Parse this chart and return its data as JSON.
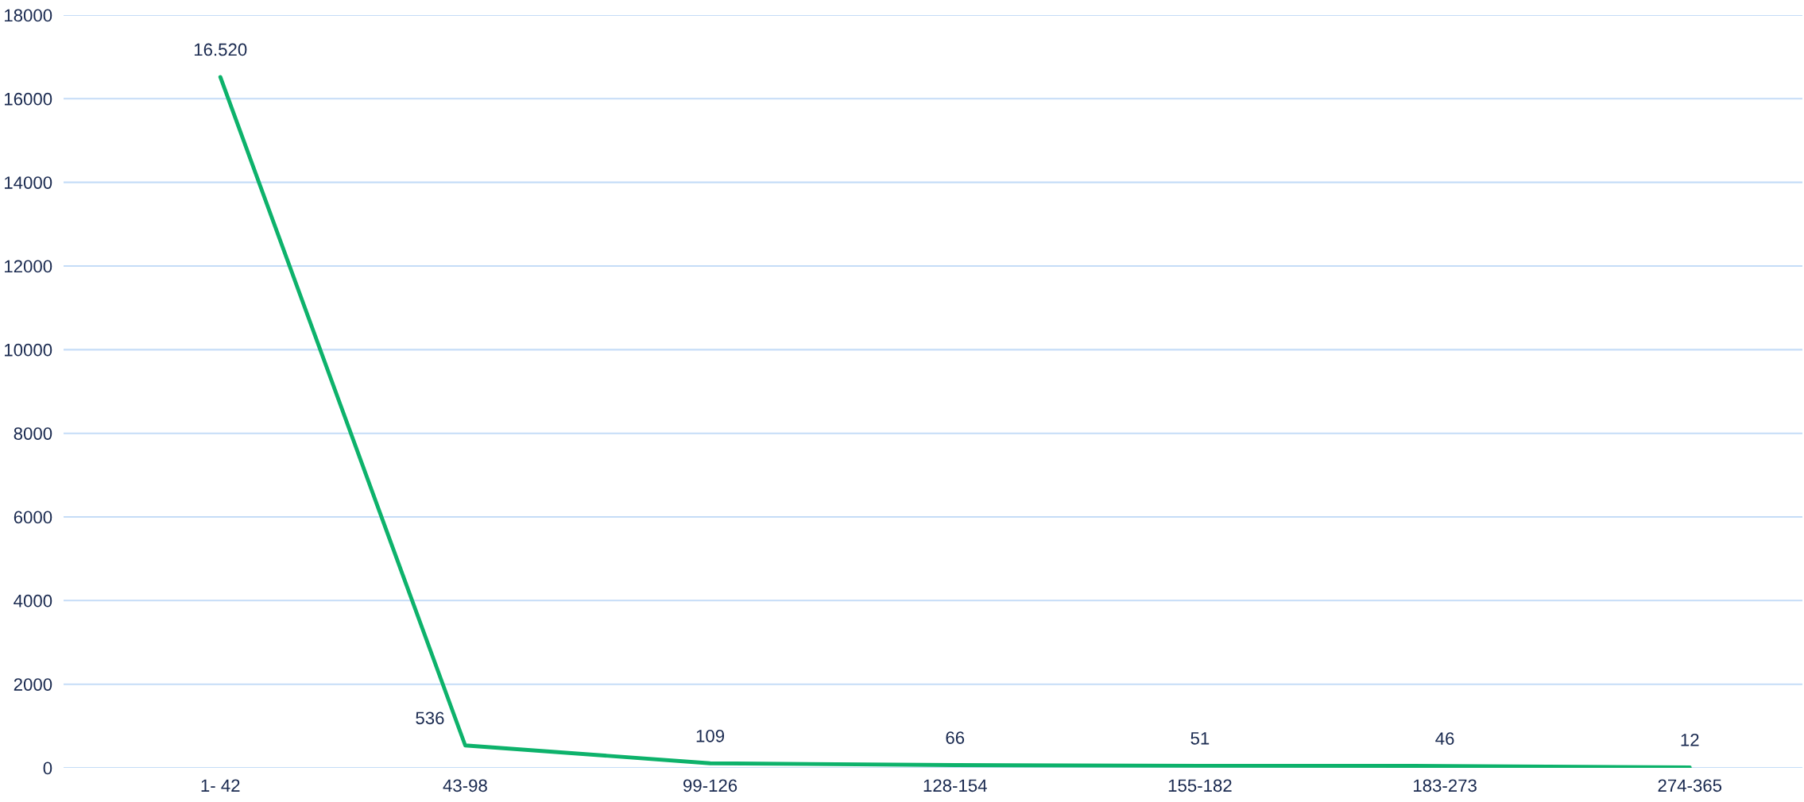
{
  "chart_data": {
    "type": "line",
    "categories": [
      "1- 42",
      "43-98",
      "99-126",
      "128-154",
      "155-182",
      "183-273",
      "274-365"
    ],
    "series": [
      {
        "color": "#0db26b",
        "values": [
          16520,
          536,
          109,
          66,
          51,
          46,
          12
        ],
        "value_labels": [
          "16.520",
          "536",
          "109",
          "66",
          "51",
          "46",
          "12"
        ]
      }
    ],
    "ylim": [
      0,
      18000
    ],
    "yticks": [
      0,
      2000,
      4000,
      6000,
      8000,
      10000,
      12000,
      14000,
      16000,
      18000
    ],
    "grid": "y",
    "marker": "none",
    "line_style": "solid"
  }
}
